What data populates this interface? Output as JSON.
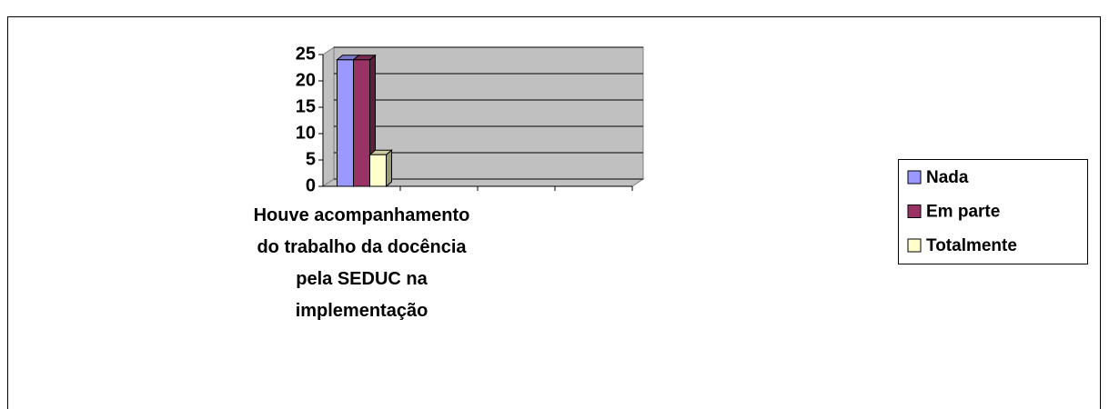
{
  "chart_data": {
    "type": "bar3d",
    "categories": [
      "Houve acompanhamento do trabalho da docência  pela SEDUC na implementação",
      null,
      null,
      null
    ],
    "series": [
      {
        "name": "Nada",
        "color": "#9999ff",
        "values": [
          24,
          null,
          null,
          null
        ]
      },
      {
        "name": "Em parte",
        "color": "#993366",
        "values": [
          24,
          null,
          null,
          null
        ]
      },
      {
        "name": "Totalmente",
        "color": "#ffffcc",
        "values": [
          6,
          null,
          null,
          null
        ]
      }
    ],
    "ylim": [
      0,
      25
    ],
    "yticks": [
      0,
      5,
      10,
      15,
      20,
      25
    ],
    "grid": true,
    "legend": "right"
  }
}
